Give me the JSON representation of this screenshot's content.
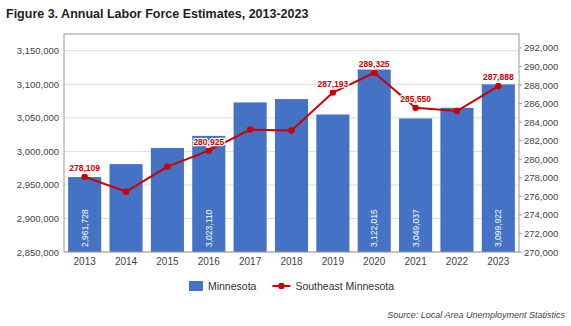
{
  "chart_data": {
    "type": "bar",
    "title": "Figure 3. Annual Labor Force Estimates, 2013-2023",
    "categories": [
      "2013",
      "2014",
      "2015",
      "2016",
      "2017",
      "2018",
      "2019",
      "2020",
      "2021",
      "2022",
      "2023"
    ],
    "series": [
      {
        "name": "Minnesota",
        "type": "bar",
        "color": "#4472C4",
        "values": [
          2961728,
          2981000,
          3005000,
          3023110,
          3073000,
          3078000,
          3055000,
          3122015,
          3049037,
          3065000,
          3099922
        ],
        "value_labels": [
          "2,961,728",
          null,
          null,
          "3,023,110",
          null,
          null,
          null,
          "3,122,015",
          "3,049,037",
          null,
          "3,099,922"
        ],
        "data_labels": true
      },
      {
        "name": "Southeast Minnesota",
        "type": "line",
        "axis": "y2",
        "color": "#CC0000",
        "marker": "circle",
        "values": [
          278109,
          276500,
          279200,
          280925,
          283200,
          283100,
          287193,
          289325,
          285550,
          285200,
          287888
        ],
        "value_labels": [
          "278,109",
          null,
          null,
          "280,925",
          null,
          null,
          "287,193",
          "289,325",
          "285,550",
          null,
          "287,888"
        ],
        "data_labels": true
      }
    ],
    "ylim": [
      2850000,
      3175000
    ],
    "yticks": [
      {
        "value": 2850000,
        "label": "2,850,000"
      },
      {
        "value": 2900000,
        "label": "2,900,000"
      },
      {
        "value": 2950000,
        "label": "2,950,000"
      },
      {
        "value": 3000000,
        "label": "3,000,000"
      },
      {
        "value": 3050000,
        "label": "3,050,000"
      },
      {
        "value": 3100000,
        "label": "3,100,000"
      },
      {
        "value": 3150000,
        "label": "3,150,000"
      }
    ],
    "y2lim": [
      270000,
      293500
    ],
    "y2ticks": [
      {
        "value": 270000,
        "label": "270,000"
      },
      {
        "value": 272000,
        "label": "272,000"
      },
      {
        "value": 274000,
        "label": "274,000"
      },
      {
        "value": 276000,
        "label": "276,000"
      },
      {
        "value": 278000,
        "label": "278,000"
      },
      {
        "value": 280000,
        "label": "280,000"
      },
      {
        "value": 282000,
        "label": "282,000"
      },
      {
        "value": 284000,
        "label": "284,000"
      },
      {
        "value": 286000,
        "label": "286,000"
      },
      {
        "value": 288000,
        "label": "288,000"
      },
      {
        "value": 290000,
        "label": "290,000"
      },
      {
        "value": 292000,
        "label": "292,000"
      }
    ],
    "grid": true,
    "legend": "bottom",
    "annotations": [
      "Source: Local Area Unemployment Statistics"
    ]
  }
}
